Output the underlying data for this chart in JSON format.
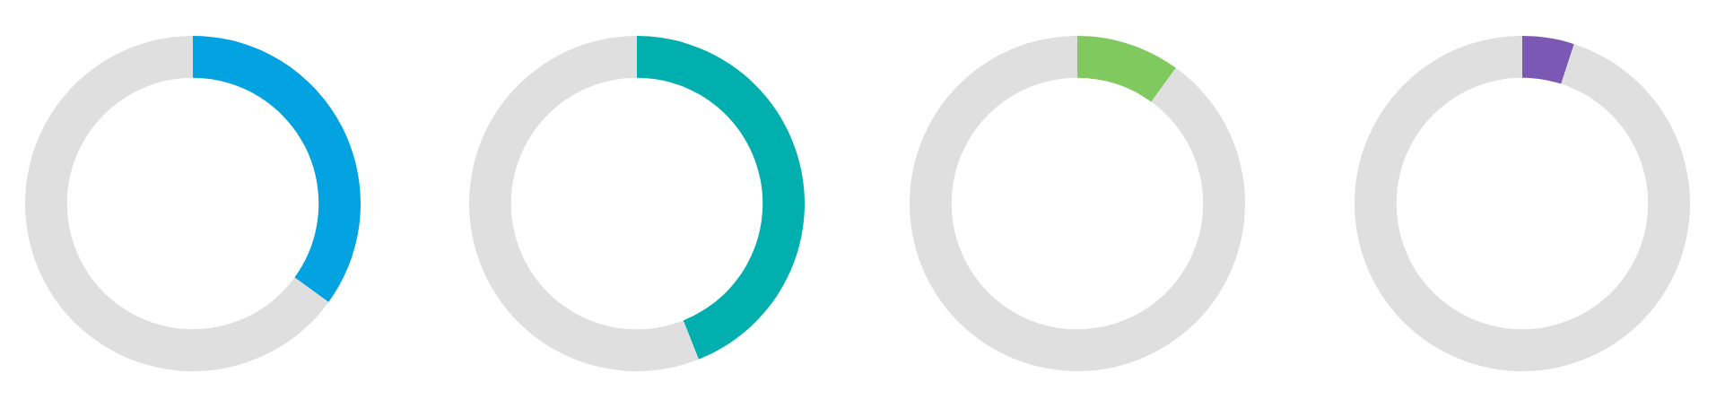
{
  "chart_data": [
    {
      "type": "donut",
      "categories": [
        null,
        null
      ],
      "values": [
        35,
        65
      ],
      "colors": [
        "#02a3e0",
        "#dfdfdf"
      ]
    },
    {
      "type": "donut",
      "categories": [
        null,
        null
      ],
      "values": [
        44,
        56
      ],
      "colors": [
        "#00afae",
        "#dfdfdf"
      ]
    },
    {
      "type": "donut",
      "categories": [
        null,
        null
      ],
      "values": [
        10,
        90
      ],
      "colors": [
        "#7fc95f",
        "#dfdfdf"
      ]
    },
    {
      "type": "donut",
      "categories": [
        null,
        null
      ],
      "values": [
        5,
        95
      ],
      "colors": [
        "#7a58b3",
        "#dfdfdf"
      ]
    }
  ]
}
